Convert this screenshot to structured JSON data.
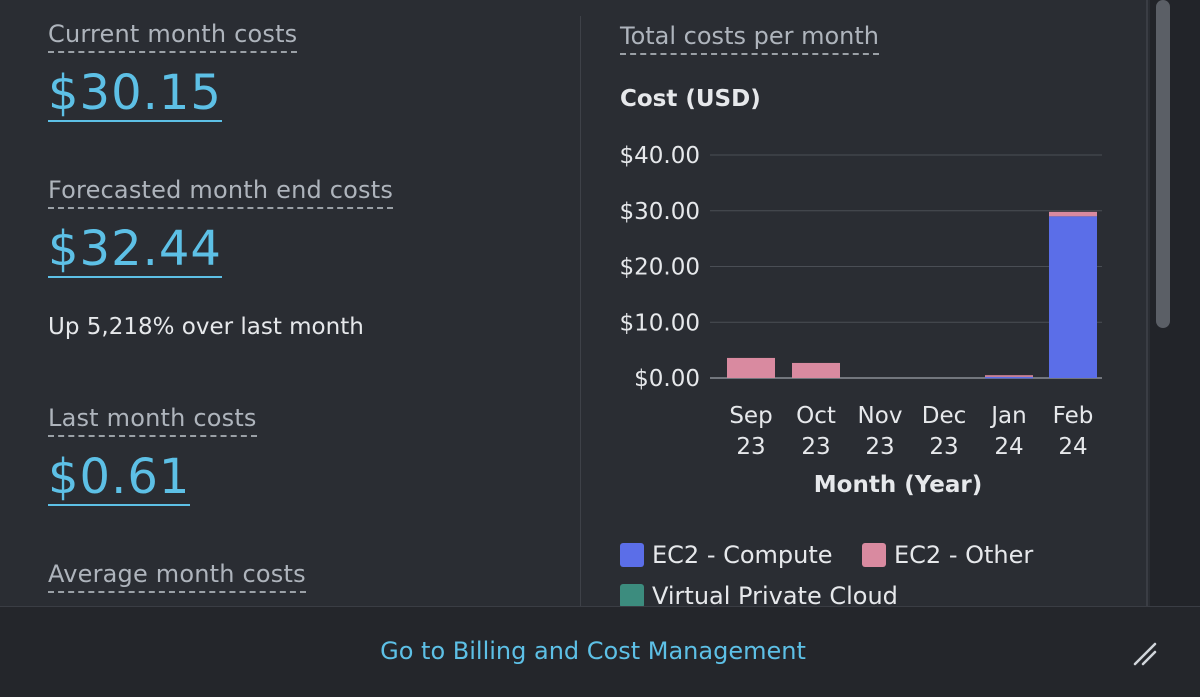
{
  "metrics": {
    "current": {
      "label": "Current month costs",
      "value": "$30.15"
    },
    "forecast": {
      "label": "Forecasted month end costs",
      "value": "$32.44",
      "note": "Up 5,218% over last month"
    },
    "last": {
      "label": "Last month costs",
      "value": "$0.61"
    },
    "average": {
      "label": "Average month costs"
    }
  },
  "chart": {
    "title": "Total costs per month"
  },
  "chart_data": {
    "type": "bar",
    "stacked": true,
    "ylabel": "Cost (USD)",
    "xlabel": "Month (Year)",
    "categories": [
      "Sep 23",
      "Oct 23",
      "Nov 23",
      "Dec 23",
      "Jan 24",
      "Feb 24"
    ],
    "category_lines": [
      [
        "Sep",
        "23"
      ],
      [
        "Oct",
        "23"
      ],
      [
        "Nov",
        "23"
      ],
      [
        "Dec",
        "23"
      ],
      [
        "Jan",
        "24"
      ],
      [
        "Feb",
        "24"
      ]
    ],
    "yticks": [
      "$0.00",
      "$10.00",
      "$20.00",
      "$30.00",
      "$40.00"
    ],
    "ylim": [
      0,
      40
    ],
    "series": [
      {
        "name": "EC2 - Compute",
        "color": "#5b6ee8",
        "values": [
          0,
          0,
          0,
          0,
          0.2,
          29.0
        ]
      },
      {
        "name": "EC2 - Other",
        "color": "#d98aa0",
        "values": [
          3.6,
          2.7,
          0,
          0,
          0.3,
          0.8
        ]
      },
      {
        "name": "Virtual Private Cloud",
        "color": "#3c8c7e",
        "values": [
          0,
          0,
          0,
          0,
          0,
          0
        ]
      }
    ],
    "legend_position": "bottom"
  },
  "footer": {
    "link": "Go to Billing and Cost Management"
  },
  "icons": {
    "resize": "resize-handle-icon"
  }
}
